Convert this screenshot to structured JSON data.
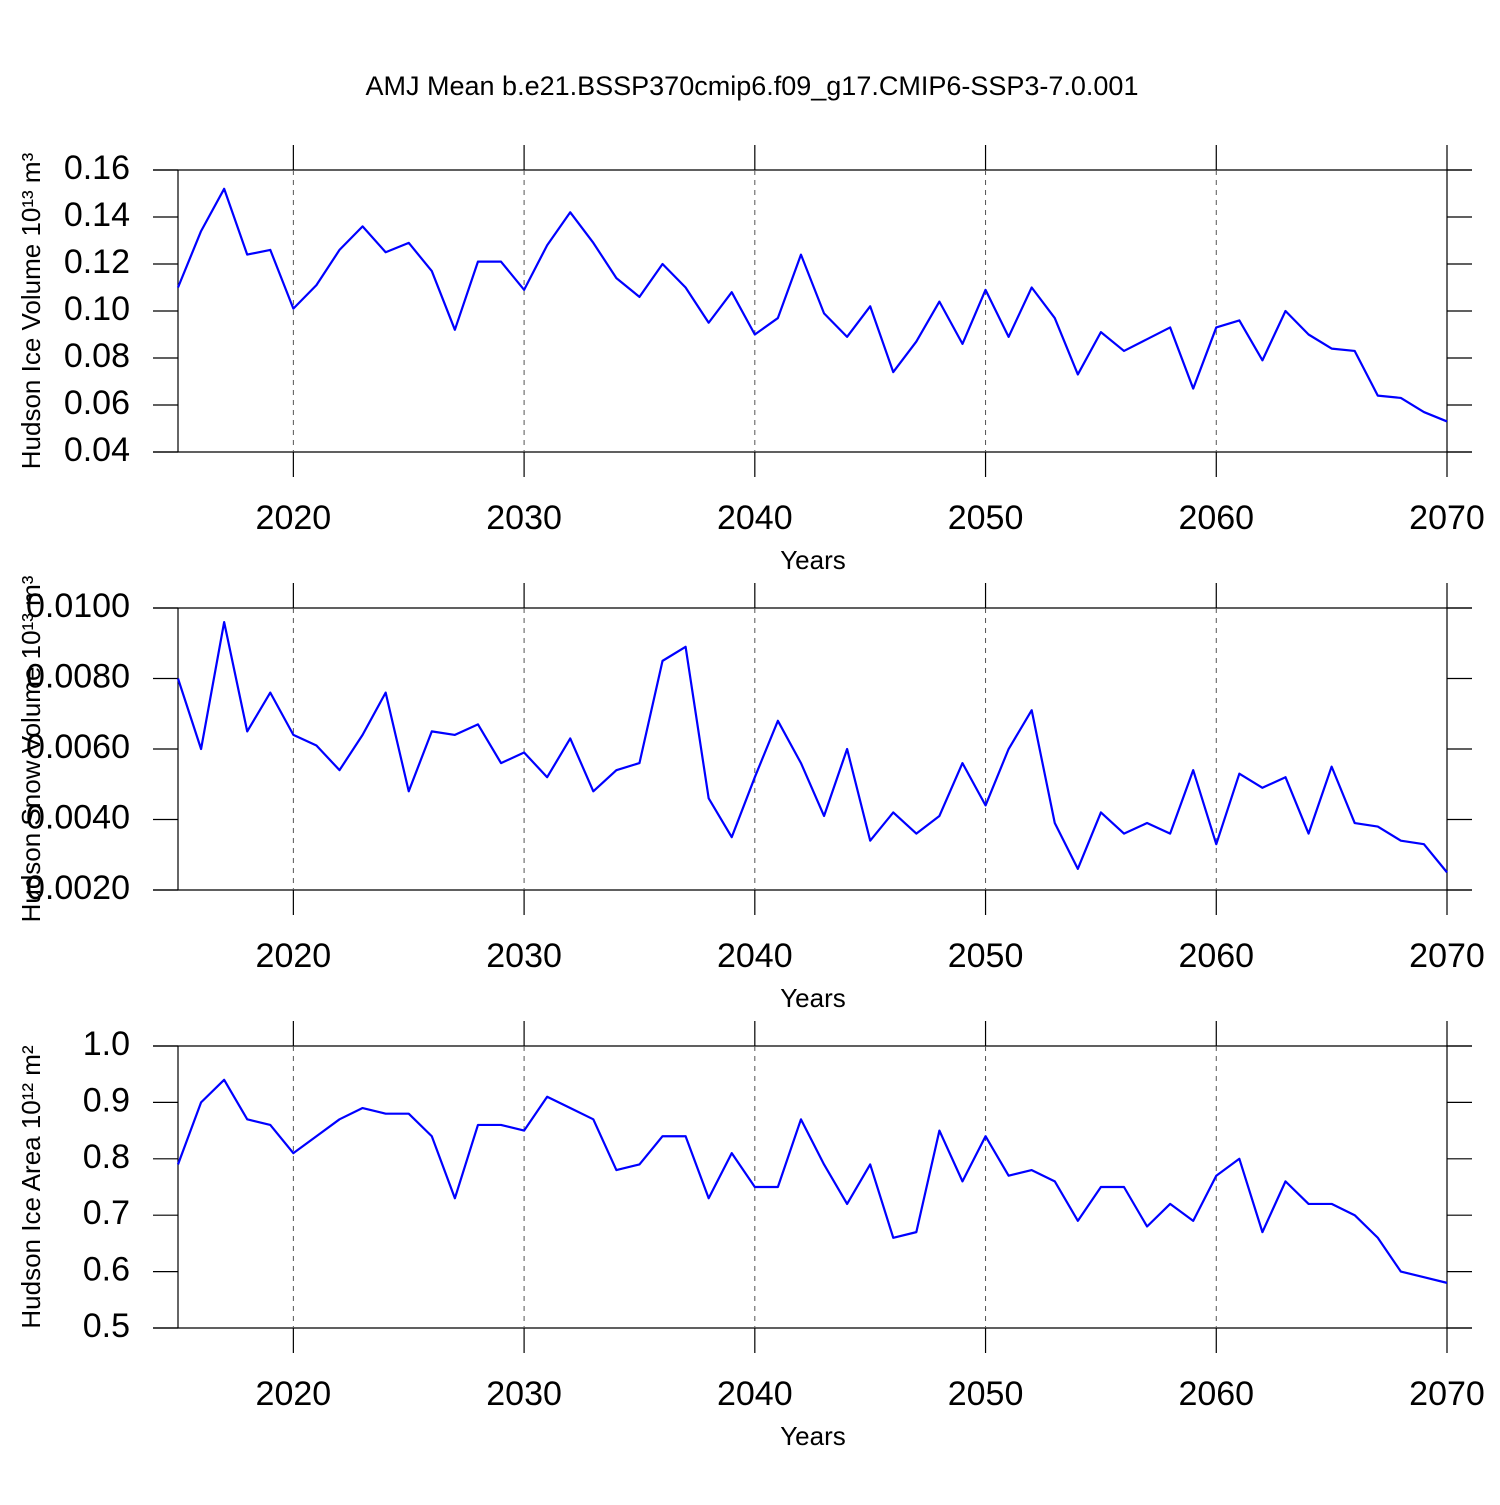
{
  "title": "AMJ Mean b.e21.BSSP370cmip6.f09_g17.CMIP6-SSP3-7.0.001",
  "chart_data": [
    {
      "type": "line",
      "xlabel": "Years",
      "ylabel": "Hudson Ice Volume 10¹³ m³",
      "x": [
        2015,
        2016,
        2017,
        2018,
        2019,
        2020,
        2021,
        2022,
        2023,
        2024,
        2025,
        2026,
        2027,
        2028,
        2029,
        2030,
        2031,
        2032,
        2033,
        2034,
        2035,
        2036,
        2037,
        2038,
        2039,
        2040,
        2041,
        2042,
        2043,
        2044,
        2045,
        2046,
        2047,
        2048,
        2049,
        2050,
        2051,
        2052,
        2053,
        2054,
        2055,
        2056,
        2057,
        2058,
        2059,
        2060,
        2061,
        2062,
        2063,
        2064,
        2065,
        2066,
        2067,
        2068,
        2069,
        2070
      ],
      "series": [
        {
          "color": "#0000ff",
          "values": [
            0.11,
            0.134,
            0.152,
            0.124,
            0.126,
            0.101,
            0.111,
            0.126,
            0.136,
            0.125,
            0.129,
            0.117,
            0.092,
            0.121,
            0.121,
            0.109,
            0.128,
            0.142,
            0.129,
            0.114,
            0.106,
            0.12,
            0.11,
            0.095,
            0.108,
            0.09,
            0.097,
            0.124,
            0.099,
            0.089,
            0.102,
            0.074,
            0.087,
            0.104,
            0.086,
            0.109,
            0.089,
            0.11,
            0.097,
            0.073,
            0.091,
            0.083,
            0.088,
            0.093,
            0.067,
            0.093,
            0.096,
            0.079,
            0.1,
            0.09,
            0.084,
            0.083,
            0.064,
            0.063,
            0.057,
            0.053
          ]
        }
      ],
      "xlim": [
        2015,
        2070
      ],
      "xticks": [
        2020,
        2030,
        2040,
        2050,
        2060,
        2070
      ],
      "ylim": [
        0.04,
        0.16
      ],
      "yticks": [
        0.04,
        0.06,
        0.08,
        {
          "value": 0.1,
          "label": "0.10"
        },
        0.12,
        0.14,
        0.16
      ],
      "grid": true
    },
    {
      "type": "line",
      "xlabel": "Years",
      "ylabel": "Hudson Snow Volume 10¹³ m³",
      "x": [
        2015,
        2016,
        2017,
        2018,
        2019,
        2020,
        2021,
        2022,
        2023,
        2024,
        2025,
        2026,
        2027,
        2028,
        2029,
        2030,
        2031,
        2032,
        2033,
        2034,
        2035,
        2036,
        2037,
        2038,
        2039,
        2040,
        2041,
        2042,
        2043,
        2044,
        2045,
        2046,
        2047,
        2048,
        2049,
        2050,
        2051,
        2052,
        2053,
        2054,
        2055,
        2056,
        2057,
        2058,
        2059,
        2060,
        2061,
        2062,
        2063,
        2064,
        2065,
        2066,
        2067,
        2068,
        2069,
        2070
      ],
      "series": [
        {
          "color": "#0000ff",
          "values": [
            0.008,
            0.006,
            0.0096,
            0.0065,
            0.0076,
            0.0064,
            0.0061,
            0.0054,
            0.0064,
            0.0076,
            0.0048,
            0.0065,
            0.0064,
            0.0067,
            0.0056,
            0.0059,
            0.0052,
            0.0063,
            0.0048,
            0.0054,
            0.0056,
            0.0085,
            0.0089,
            0.0046,
            0.0035,
            0.0052,
            0.0068,
            0.0056,
            0.0041,
            0.006,
            0.0034,
            0.0042,
            0.0036,
            0.0041,
            0.0056,
            0.0044,
            0.006,
            0.0071,
            0.0039,
            0.0026,
            0.0042,
            0.0036,
            0.0039,
            0.0036,
            0.0054,
            0.0033,
            0.0053,
            0.0049,
            0.0052,
            0.0036,
            0.0055,
            0.0039,
            0.0038,
            0.0034,
            0.0033,
            0.0025
          ]
        }
      ],
      "xlim": [
        2015,
        2070
      ],
      "xticks": [
        2020,
        2030,
        2040,
        2050,
        2060,
        2070
      ],
      "ylim": [
        0.002,
        0.01
      ],
      "yticks": [
        {
          "value": 0.002,
          "label": "0.0020"
        },
        {
          "value": 0.004,
          "label": "0.0040"
        },
        {
          "value": 0.006,
          "label": "0.0060"
        },
        {
          "value": 0.008,
          "label": "0.0080"
        },
        {
          "value": 0.01,
          "label": "0.0100"
        }
      ],
      "grid": true
    },
    {
      "type": "line",
      "xlabel": "Years",
      "ylabel": "Hudson Ice Area 10¹² m²",
      "x": [
        2015,
        2016,
        2017,
        2018,
        2019,
        2020,
        2021,
        2022,
        2023,
        2024,
        2025,
        2026,
        2027,
        2028,
        2029,
        2030,
        2031,
        2032,
        2033,
        2034,
        2035,
        2036,
        2037,
        2038,
        2039,
        2040,
        2041,
        2042,
        2043,
        2044,
        2045,
        2046,
        2047,
        2048,
        2049,
        2050,
        2051,
        2052,
        2053,
        2054,
        2055,
        2056,
        2057,
        2058,
        2059,
        2060,
        2061,
        2062,
        2063,
        2064,
        2065,
        2066,
        2067,
        2068,
        2069,
        2070
      ],
      "series": [
        {
          "color": "#0000ff",
          "values": [
            0.79,
            0.9,
            0.94,
            0.87,
            0.86,
            0.81,
            0.84,
            0.87,
            0.89,
            0.88,
            0.88,
            0.84,
            0.73,
            0.86,
            0.86,
            0.85,
            0.91,
            0.89,
            0.87,
            0.78,
            0.79,
            0.84,
            0.84,
            0.73,
            0.81,
            0.75,
            0.75,
            0.87,
            0.79,
            0.72,
            0.79,
            0.66,
            0.67,
            0.85,
            0.76,
            0.84,
            0.77,
            0.78,
            0.76,
            0.69,
            0.75,
            0.75,
            0.68,
            0.72,
            0.69,
            0.77,
            0.8,
            0.67,
            0.76,
            0.72,
            0.72,
            0.7,
            0.66,
            0.6,
            0.59,
            0.58
          ]
        }
      ],
      "xlim": [
        2015,
        2070
      ],
      "xticks": [
        2020,
        2030,
        2040,
        2050,
        2060,
        2070
      ],
      "ylim": [
        0.5,
        1.0
      ],
      "yticks": [
        0.5,
        0.6,
        0.7,
        0.8,
        0.9,
        {
          "value": 1,
          "label": "1.0"
        }
      ],
      "grid": true
    }
  ]
}
